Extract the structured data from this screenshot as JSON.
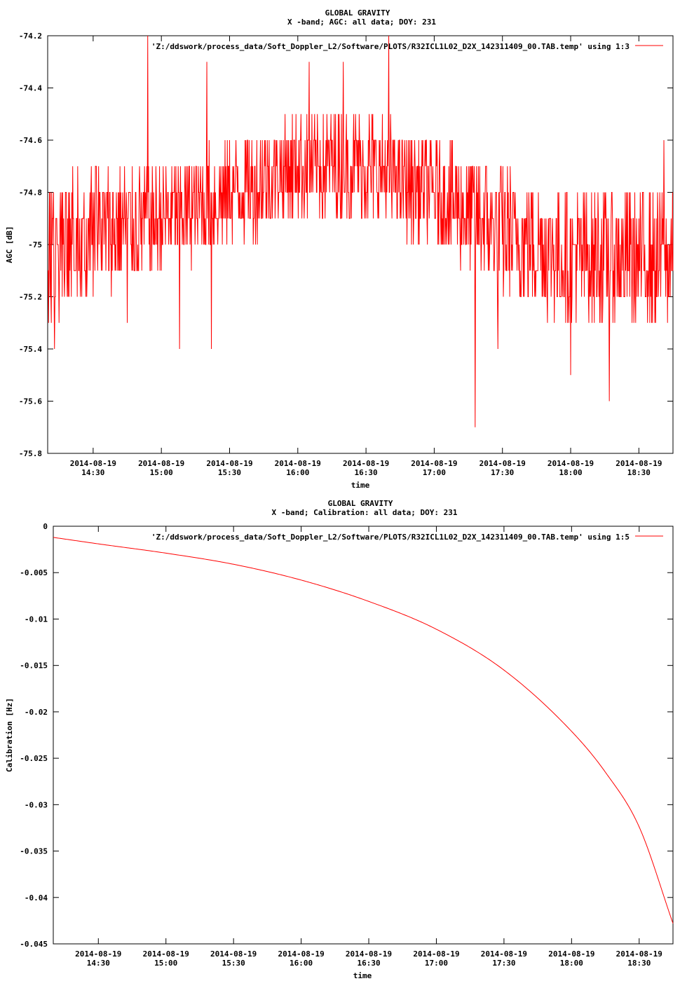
{
  "charts": [
    {
      "title": "GLOBAL GRAVITY",
      "subtitle": "X -band; AGC: all data; DOY: 231",
      "legend_label": "'Z:/ddswork/process_data/Soft_Doppler_L2/Software/PLOTS/R32ICL1L02_D2X_142311409_00.TAB.temp' using 1:3",
      "xlabel": "time",
      "ylabel": "AGC [dB]"
    },
    {
      "title": "GLOBAL GRAVITY",
      "subtitle": "X -band; Calibration: all data; DOY: 231",
      "legend_label": "'Z:/ddswork/process_data/Soft_Doppler_L2/Software/PLOTS/R32ICL1L02_D2X_142311409_00.TAB.temp' using 1:5",
      "xlabel": "time",
      "ylabel": "Calibration [Hz]"
    }
  ],
  "chart_data": [
    {
      "type": "line",
      "title": "GLOBAL GRAVITY",
      "subtitle": "X -band; AGC: all data; DOY: 231",
      "xlabel": "time",
      "ylabel": "AGC [dB]",
      "xlim": [
        "2014-08-19 14:10",
        "2014-08-19 18:45"
      ],
      "ylim": [
        -75.8,
        -74.2
      ],
      "line_color": "#ff0000",
      "legend_position": "top-right",
      "grid": false,
      "x_ticks": [
        {
          "value": "2014-08-19 14:30",
          "date": "2014-08-19",
          "time": "14:30"
        },
        {
          "value": "2014-08-19 15:00",
          "date": "2014-08-19",
          "time": "15:00"
        },
        {
          "value": "2014-08-19 15:30",
          "date": "2014-08-19",
          "time": "15:30"
        },
        {
          "value": "2014-08-19 16:00",
          "date": "2014-08-19",
          "time": "16:00"
        },
        {
          "value": "2014-08-19 16:30",
          "date": "2014-08-19",
          "time": "16:30"
        },
        {
          "value": "2014-08-19 17:00",
          "date": "2014-08-19",
          "time": "17:00"
        },
        {
          "value": "2014-08-19 17:30",
          "date": "2014-08-19",
          "time": "17:30"
        },
        {
          "value": "2014-08-19 18:00",
          "date": "2014-08-19",
          "time": "18:00"
        },
        {
          "value": "2014-08-19 18:30",
          "date": "2014-08-19",
          "time": "18:30"
        }
      ],
      "y_ticks": [
        {
          "value": -74.2,
          "label": "-74.2"
        },
        {
          "value": -74.4,
          "label": "-74.4"
        },
        {
          "value": -74.6,
          "label": "-74.6"
        },
        {
          "value": -74.8,
          "label": "-74.8"
        },
        {
          "value": -75.0,
          "label": "-75"
        },
        {
          "value": -75.2,
          "label": "-75.2"
        },
        {
          "value": -75.4,
          "label": "-75.4"
        },
        {
          "value": -75.6,
          "label": "-75.6"
        },
        {
          "value": -75.8,
          "label": "-75.8"
        }
      ],
      "series": [
        {
          "legend": "'Z:/ddswork/process_data/Soft_Doppler_L2/Software/PLOTS/R32ICL1L02_D2X_142311409_00.TAB.temp' using 1:3",
          "x": [
            "2014-08-19 14:10",
            "2014-08-19 14:30",
            "2014-08-19 15:00",
            "2014-08-19 15:30",
            "2014-08-19 16:00",
            "2014-08-19 16:30",
            "2014-08-19 17:00",
            "2014-08-19 17:30",
            "2014-08-19 18:00",
            "2014-08-19 18:30",
            "2014-08-19 18:45"
          ],
          "band_low": [
            -75.3,
            -75.2,
            -75.1,
            -75.0,
            -74.9,
            -74.9,
            -75.0,
            -75.2,
            -75.3,
            -75.3,
            -75.3
          ],
          "band_high": [
            -74.8,
            -74.7,
            -74.7,
            -74.6,
            -74.5,
            -74.5,
            -74.6,
            -74.7,
            -74.8,
            -74.8,
            -74.8
          ],
          "spikes": [
            {
              "x": "2014-08-19 14:13",
              "y": -75.4
            },
            {
              "x": "2014-08-19 14:45",
              "y": -75.3
            },
            {
              "x": "2014-08-19 14:54",
              "y": -74.2
            },
            {
              "x": "2014-08-19 15:08",
              "y": -75.4
            },
            {
              "x": "2014-08-19 15:20",
              "y": -74.3
            },
            {
              "x": "2014-08-19 15:22",
              "y": -75.4
            },
            {
              "x": "2014-08-19 16:05",
              "y": -74.3
            },
            {
              "x": "2014-08-19 16:20",
              "y": -74.3
            },
            {
              "x": "2014-08-19 16:40",
              "y": -74.2
            },
            {
              "x": "2014-08-19 17:18",
              "y": -75.7
            },
            {
              "x": "2014-08-19 17:28",
              "y": -75.4
            },
            {
              "x": "2014-08-19 18:00",
              "y": -75.5
            },
            {
              "x": "2014-08-19 18:17",
              "y": -75.6
            },
            {
              "x": "2014-08-19 18:41",
              "y": -74.6
            }
          ]
        }
      ]
    },
    {
      "type": "line",
      "title": "GLOBAL GRAVITY",
      "subtitle": "X -band; Calibration: all data; DOY: 231",
      "xlabel": "time",
      "ylabel": "Calibration [Hz]",
      "xlim": [
        "2014-08-19 14:10",
        "2014-08-19 18:45"
      ],
      "ylim": [
        -0.045,
        0
      ],
      "line_color": "#ff0000",
      "legend_position": "top-right",
      "grid": false,
      "x_ticks": [
        {
          "value": "2014-08-19 14:30",
          "date": "2014-08-19",
          "time": "14:30"
        },
        {
          "value": "2014-08-19 15:00",
          "date": "2014-08-19",
          "time": "15:00"
        },
        {
          "value": "2014-08-19 15:30",
          "date": "2014-08-19",
          "time": "15:30"
        },
        {
          "value": "2014-08-19 16:00",
          "date": "2014-08-19",
          "time": "16:00"
        },
        {
          "value": "2014-08-19 16:30",
          "date": "2014-08-19",
          "time": "16:30"
        },
        {
          "value": "2014-08-19 17:00",
          "date": "2014-08-19",
          "time": "17:00"
        },
        {
          "value": "2014-08-19 17:30",
          "date": "2014-08-19",
          "time": "17:30"
        },
        {
          "value": "2014-08-19 18:00",
          "date": "2014-08-19",
          "time": "18:00"
        },
        {
          "value": "2014-08-19 18:30",
          "date": "2014-08-19",
          "time": "18:30"
        }
      ],
      "y_ticks": [
        {
          "value": 0,
          "label": "0"
        },
        {
          "value": -0.005,
          "label": "-0.005"
        },
        {
          "value": -0.01,
          "label": "-0.01"
        },
        {
          "value": -0.015,
          "label": "-0.015"
        },
        {
          "value": -0.02,
          "label": "-0.02"
        },
        {
          "value": -0.025,
          "label": "-0.025"
        },
        {
          "value": -0.03,
          "label": "-0.03"
        },
        {
          "value": -0.035,
          "label": "-0.035"
        },
        {
          "value": -0.04,
          "label": "-0.04"
        },
        {
          "value": -0.045,
          "label": "-0.045"
        }
      ],
      "series": [
        {
          "legend": "'Z:/ddswork/process_data/Soft_Doppler_L2/Software/PLOTS/R32ICL1L02_D2X_142311409_00.TAB.temp' using 1:5",
          "x": [
            "2014-08-19 14:10",
            "2014-08-19 14:30",
            "2014-08-19 15:00",
            "2014-08-19 15:30",
            "2014-08-19 16:00",
            "2014-08-19 16:30",
            "2014-08-19 17:00",
            "2014-08-19 17:30",
            "2014-08-19 18:00",
            "2014-08-19 18:15",
            "2014-08-19 18:30",
            "2014-08-19 18:45"
          ],
          "y": [
            -0.0012,
            -0.0019,
            -0.0029,
            -0.0041,
            -0.0058,
            -0.0081,
            -0.0111,
            -0.0155,
            -0.0221,
            -0.0265,
            -0.0324,
            -0.0428
          ]
        }
      ]
    }
  ]
}
